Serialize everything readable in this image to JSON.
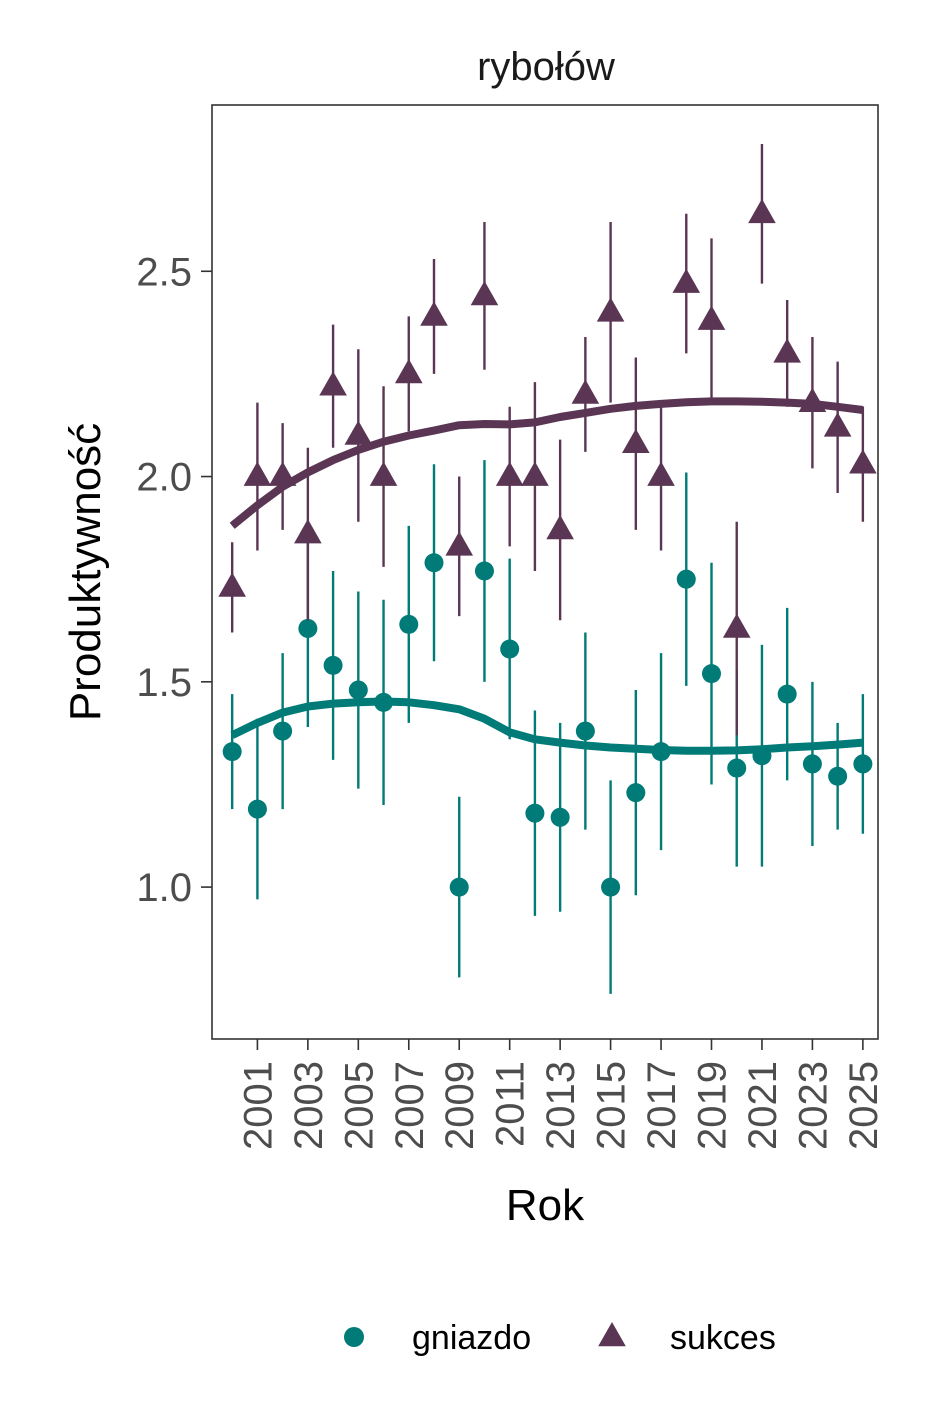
{
  "chart_data": {
    "type": "scatter",
    "title": "rybołów",
    "xlabel": "Rok",
    "ylabel": "Produktywność",
    "xlim": [
      1999.2,
      2025.6
    ],
    "ylim": [
      0.63,
      2.905
    ],
    "x_ticks": [
      2001,
      2003,
      2005,
      2007,
      2009,
      2011,
      2013,
      2015,
      2017,
      2019,
      2021,
      2023,
      2025
    ],
    "x_tick_labels": [
      "2001",
      "2003",
      "2005",
      "2007",
      "2009",
      "2011",
      "2013",
      "2015",
      "2017",
      "2019",
      "2021",
      "2023",
      "2025"
    ],
    "y_ticks": [
      1.0,
      1.5,
      2.0,
      2.5
    ],
    "y_tick_labels": [
      "1.0",
      "1.5",
      "2.0",
      "2.5"
    ],
    "grid": false,
    "legend_position": "bottom",
    "series": [
      {
        "name": "gniazdo",
        "color": "#007B77",
        "marker": "circle",
        "points": [
          {
            "x": 2000,
            "y": 1.33,
            "lo": 1.19,
            "hi": 1.47
          },
          {
            "x": 2001,
            "y": 1.19,
            "lo": 0.97,
            "hi": 1.41
          },
          {
            "x": 2002,
            "y": 1.38,
            "lo": 1.19,
            "hi": 1.57
          },
          {
            "x": 2003,
            "y": 1.63,
            "lo": 1.39,
            "hi": 1.87
          },
          {
            "x": 2004,
            "y": 1.54,
            "lo": 1.31,
            "hi": 1.77
          },
          {
            "x": 2005,
            "y": 1.48,
            "lo": 1.24,
            "hi": 1.72
          },
          {
            "x": 2006,
            "y": 1.45,
            "lo": 1.2,
            "hi": 1.7
          },
          {
            "x": 2007,
            "y": 1.64,
            "lo": 1.4,
            "hi": 1.88
          },
          {
            "x": 2008,
            "y": 1.79,
            "lo": 1.55,
            "hi": 2.03
          },
          {
            "x": 2009,
            "y": 1.0,
            "lo": 0.78,
            "hi": 1.22
          },
          {
            "x": 2010,
            "y": 1.77,
            "lo": 1.5,
            "hi": 2.04
          },
          {
            "x": 2011,
            "y": 1.58,
            "lo": 1.36,
            "hi": 1.8
          },
          {
            "x": 2012,
            "y": 1.18,
            "lo": 0.93,
            "hi": 1.43
          },
          {
            "x": 2013,
            "y": 1.17,
            "lo": 0.94,
            "hi": 1.4
          },
          {
            "x": 2014,
            "y": 1.38,
            "lo": 1.14,
            "hi": 1.62
          },
          {
            "x": 2015,
            "y": 1.0,
            "lo": 0.74,
            "hi": 1.26
          },
          {
            "x": 2016,
            "y": 1.23,
            "lo": 0.98,
            "hi": 1.48
          },
          {
            "x": 2017,
            "y": 1.33,
            "lo": 1.09,
            "hi": 1.57
          },
          {
            "x": 2018,
            "y": 1.75,
            "lo": 1.49,
            "hi": 2.01
          },
          {
            "x": 2019,
            "y": 1.52,
            "lo": 1.25,
            "hi": 1.79
          },
          {
            "x": 2020,
            "y": 1.29,
            "lo": 1.05,
            "hi": 1.53
          },
          {
            "x": 2021,
            "y": 1.32,
            "lo": 1.05,
            "hi": 1.59
          },
          {
            "x": 2022,
            "y": 1.47,
            "lo": 1.26,
            "hi": 1.68
          },
          {
            "x": 2023,
            "y": 1.3,
            "lo": 1.1,
            "hi": 1.5
          },
          {
            "x": 2024,
            "y": 1.27,
            "lo": 1.14,
            "hi": 1.4
          },
          {
            "x": 2025,
            "y": 1.3,
            "lo": 1.13,
            "hi": 1.47
          }
        ],
        "trend": {
          "x": [
            2000,
            2001,
            2002,
            2003,
            2004,
            2005,
            2006,
            2007,
            2008,
            2009,
            2010,
            2011,
            2012,
            2013,
            2014,
            2015,
            2016,
            2017,
            2018,
            2019,
            2020,
            2021,
            2022,
            2023,
            2024,
            2025
          ],
          "y": [
            1.37,
            1.4,
            1.425,
            1.44,
            1.447,
            1.45,
            1.452,
            1.45,
            1.443,
            1.433,
            1.41,
            1.377,
            1.36,
            1.352,
            1.345,
            1.34,
            1.337,
            1.334,
            1.332,
            1.332,
            1.333,
            1.336,
            1.34,
            1.343,
            1.347,
            1.352
          ]
        }
      },
      {
        "name": "sukces",
        "color": "#5B3654",
        "marker": "triangle",
        "points": [
          {
            "x": 2000,
            "y": 1.73,
            "lo": 1.62,
            "hi": 1.84
          },
          {
            "x": 2001,
            "y": 2.0,
            "lo": 1.82,
            "hi": 2.18
          },
          {
            "x": 2002,
            "y": 2.0,
            "lo": 1.87,
            "hi": 2.13
          },
          {
            "x": 2003,
            "y": 1.86,
            "lo": 1.65,
            "hi": 2.07
          },
          {
            "x": 2004,
            "y": 2.22,
            "lo": 2.07,
            "hi": 2.37
          },
          {
            "x": 2005,
            "y": 2.1,
            "lo": 1.89,
            "hi": 2.31
          },
          {
            "x": 2006,
            "y": 2.0,
            "lo": 1.78,
            "hi": 2.22
          },
          {
            "x": 2007,
            "y": 2.25,
            "lo": 2.11,
            "hi": 2.39
          },
          {
            "x": 2008,
            "y": 2.39,
            "lo": 2.25,
            "hi": 2.53
          },
          {
            "x": 2009,
            "y": 1.83,
            "lo": 1.66,
            "hi": 2.0
          },
          {
            "x": 2010,
            "y": 2.44,
            "lo": 2.26,
            "hi": 2.62
          },
          {
            "x": 2011,
            "y": 2.0,
            "lo": 1.83,
            "hi": 2.17
          },
          {
            "x": 2012,
            "y": 2.0,
            "lo": 1.77,
            "hi": 2.23
          },
          {
            "x": 2013,
            "y": 1.87,
            "lo": 1.65,
            "hi": 2.09
          },
          {
            "x": 2014,
            "y": 2.2,
            "lo": 2.06,
            "hi": 2.34
          },
          {
            "x": 2015,
            "y": 2.4,
            "lo": 2.18,
            "hi": 2.62
          },
          {
            "x": 2016,
            "y": 2.08,
            "lo": 1.87,
            "hi": 2.29
          },
          {
            "x": 2017,
            "y": 2.0,
            "lo": 1.82,
            "hi": 2.18
          },
          {
            "x": 2018,
            "y": 2.47,
            "lo": 2.3,
            "hi": 2.64
          },
          {
            "x": 2019,
            "y": 2.38,
            "lo": 2.18,
            "hi": 2.58
          },
          {
            "x": 2020,
            "y": 1.63,
            "lo": 1.37,
            "hi": 1.89
          },
          {
            "x": 2021,
            "y": 2.64,
            "lo": 2.47,
            "hi": 2.81
          },
          {
            "x": 2022,
            "y": 2.3,
            "lo": 2.17,
            "hi": 2.43
          },
          {
            "x": 2023,
            "y": 2.18,
            "lo": 2.02,
            "hi": 2.34
          },
          {
            "x": 2024,
            "y": 2.12,
            "lo": 1.96,
            "hi": 2.28
          },
          {
            "x": 2025,
            "y": 2.03,
            "lo": 1.89,
            "hi": 2.17
          }
        ],
        "trend": {
          "x": [
            2000,
            2001,
            2002,
            2003,
            2004,
            2005,
            2006,
            2007,
            2008,
            2009,
            2010,
            2011,
            2012,
            2013,
            2014,
            2015,
            2016,
            2017,
            2018,
            2019,
            2020,
            2021,
            2022,
            2023,
            2024,
            2025
          ],
          "y": [
            1.88,
            1.93,
            1.975,
            2.01,
            2.04,
            2.065,
            2.085,
            2.1,
            2.112,
            2.125,
            2.128,
            2.127,
            2.132,
            2.145,
            2.155,
            2.165,
            2.172,
            2.177,
            2.181,
            2.183,
            2.183,
            2.182,
            2.18,
            2.177,
            2.17,
            2.162
          ]
        }
      }
    ]
  }
}
